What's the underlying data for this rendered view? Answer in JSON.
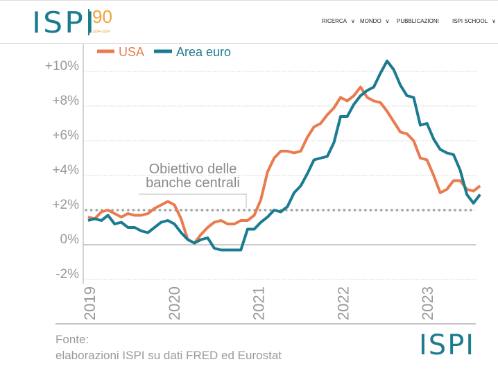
{
  "header": {
    "logo": {
      "text": "ISPI",
      "anniversary": "90",
      "years": "1934–2024"
    },
    "nav": [
      {
        "label": "RICERCA",
        "dropdown": true
      },
      {
        "label": "MONDO",
        "dropdown": true
      },
      {
        "label": "PUBBLICAZIONI",
        "dropdown": false
      },
      {
        "label": "ISPI SCHOOL",
        "dropdown": true
      }
    ]
  },
  "footer": {
    "source_title": "Fonte:",
    "source_text": "elaborazioni ISPI su dati FRED ed Eurostat",
    "logo": "ISPI"
  },
  "colors": {
    "usa": "#e97b4f",
    "euro": "#1b7b91",
    "grid": "#c8c8c8",
    "target": "#a0a0a0"
  },
  "chart_data": {
    "type": "line",
    "title": "",
    "xlabel": "",
    "ylabel": "",
    "ylim": [
      -2,
      10
    ],
    "yticks": [
      "-2%",
      "0%",
      "+2%",
      "+4%",
      "+6%",
      "+8%",
      "+10%"
    ],
    "ytick_values": [
      -2,
      0,
      2,
      4,
      6,
      8,
      10
    ],
    "xtick_labels": [
      "2019",
      "2020",
      "2021",
      "2022",
      "2023"
    ],
    "x_start": "2019-01",
    "x_frequency": "monthly",
    "grid": true,
    "legend_position": "top-left",
    "annotation": {
      "line1": "Obiettivo delle",
      "line2": "banche centrali",
      "value": 2
    },
    "series": [
      {
        "name": "USA",
        "values": [
          1.6,
          1.5,
          1.9,
          2.0,
          1.8,
          1.6,
          1.8,
          1.7,
          1.7,
          1.8,
          2.1,
          2.3,
          2.5,
          2.3,
          1.5,
          0.3,
          0.1,
          0.6,
          1.0,
          1.3,
          1.4,
          1.2,
          1.2,
          1.4,
          1.4,
          1.7,
          2.6,
          4.2,
          5.0,
          5.4,
          5.4,
          5.3,
          5.4,
          6.2,
          6.8,
          7.0,
          7.5,
          7.9,
          8.5,
          8.3,
          8.6,
          9.1,
          8.5,
          8.3,
          8.2,
          7.7,
          7.1,
          6.5,
          6.4,
          6.0,
          5.0,
          4.9,
          4.0,
          3.0,
          3.2,
          3.7,
          3.7,
          3.2,
          3.1,
          3.4
        ]
      },
      {
        "name": "Area euro",
        "values": [
          1.4,
          1.5,
          1.4,
          1.7,
          1.2,
          1.3,
          1.0,
          1.0,
          0.8,
          0.7,
          1.0,
          1.3,
          1.4,
          1.2,
          0.7,
          0.3,
          0.1,
          0.3,
          0.4,
          -0.2,
          -0.3,
          -0.3,
          -0.3,
          -0.3,
          0.9,
          0.9,
          1.3,
          1.6,
          2.0,
          1.9,
          2.2,
          3.0,
          3.4,
          4.1,
          4.9,
          5.0,
          5.1,
          5.9,
          7.4,
          7.4,
          8.1,
          8.6,
          8.9,
          9.1,
          9.9,
          10.6,
          10.1,
          9.2,
          8.6,
          8.5,
          6.9,
          7.0,
          6.1,
          5.5,
          5.3,
          5.2,
          4.3,
          2.9,
          2.4,
          2.9
        ]
      }
    ]
  }
}
